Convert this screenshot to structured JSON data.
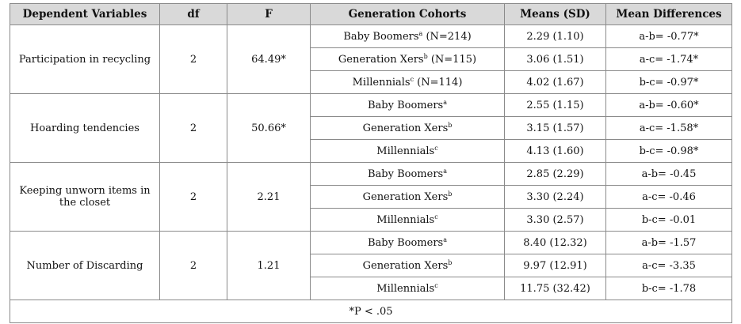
{
  "headers": {
    "dependent": "Dependent Variables",
    "df": "df",
    "f": "F",
    "cohorts": "Generation Cohorts",
    "means": "Means (SD)",
    "diff": "Mean Differences"
  },
  "groups": [
    {
      "variable": "Participation in recycling",
      "df": "2",
      "f": "64.49*",
      "rows": [
        {
          "cohort": "Baby Boomers",
          "sup": "a",
          "n": " (N=214)",
          "mean": "2.29 (1.10)",
          "diff": "a-b= -0.77*"
        },
        {
          "cohort": "Generation Xers",
          "sup": "b",
          "n": " (N=115)",
          "mean": "3.06 (1.51)",
          "diff": "a-c= -1.74*"
        },
        {
          "cohort": "Millennials",
          "sup": "c",
          "n": " (N=114)",
          "mean": "4.02 (1.67)",
          "diff": "b-c= -0.97*"
        }
      ]
    },
    {
      "variable": "Hoarding tendencies",
      "df": "2",
      "f": "50.66*",
      "rows": [
        {
          "cohort": "Baby Boomers",
          "sup": "a",
          "n": "",
          "mean": "2.55 (1.15)",
          "diff": "a-b= -0.60*"
        },
        {
          "cohort": "Generation Xers",
          "sup": "b",
          "n": "",
          "mean": "3.15 (1.57)",
          "diff": "a-c= -1.58*"
        },
        {
          "cohort": "Millennials",
          "sup": "c",
          "n": "",
          "mean": "4.13 (1.60)",
          "diff": "b-c= -0.98*"
        }
      ]
    },
    {
      "variable": "Keeping unworn items in the closet",
      "df": "2",
      "f": "2.21",
      "rows": [
        {
          "cohort": "Baby Boomers",
          "sup": "a",
          "n": "",
          "mean": "2.85 (2.29)",
          "diff": "a-b= -0.45"
        },
        {
          "cohort": "Generation Xers",
          "sup": "b",
          "n": "",
          "mean": "3.30 (2.24)",
          "diff": "a-c= -0.46"
        },
        {
          "cohort": "Millennials",
          "sup": "c",
          "n": "",
          "mean": "3.30 (2.57)",
          "diff": "b-c= -0.01"
        }
      ]
    },
    {
      "variable": "Number of Discarding",
      "df": "2",
      "f": "1.21",
      "rows": [
        {
          "cohort": "Baby Boomers",
          "sup": "a",
          "n": "",
          "mean": "8.40 (12.32)",
          "diff": "a-b= -1.57"
        },
        {
          "cohort": "Generation Xers",
          "sup": "b",
          "n": "",
          "mean": "9.97 (12.91)",
          "diff": "a-c= -3.35"
        },
        {
          "cohort": "Millennials",
          "sup": "c",
          "n": "",
          "mean": "11.75 (32.42)",
          "diff": "b-c= -1.78"
        }
      ]
    }
  ],
  "note": "*P < .05"
}
